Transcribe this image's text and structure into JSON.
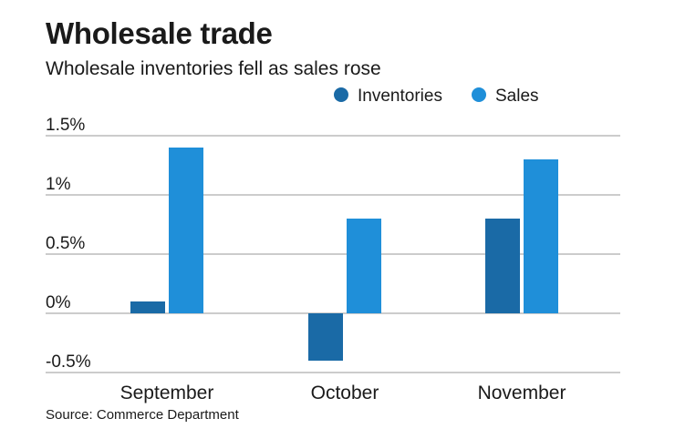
{
  "title": "Wholesale trade",
  "subtitle": "Wholesale inventories fell as sales rose",
  "source": "Source: Commerce Department",
  "colors": {
    "inventories": "#1a6aa6",
    "sales": "#1f8fd9",
    "grid": "#999999"
  },
  "chart_data": {
    "type": "bar",
    "title": "Wholesale trade",
    "subtitle": "Wholesale inventories fell as sales rose",
    "categories": [
      "September",
      "October",
      "November"
    ],
    "series": [
      {
        "name": "Inventories",
        "values": [
          0.1,
          -0.4,
          0.8
        ]
      },
      {
        "name": "Sales",
        "values": [
          1.4,
          0.8,
          1.3
        ]
      }
    ],
    "yticks": [
      1.5,
      1,
      0.5,
      0,
      -0.5
    ],
    "ytick_labels": [
      "1.5%",
      "1%",
      "0.5%",
      "0%",
      "-0.5%"
    ],
    "ylim": [
      -0.5,
      1.5
    ],
    "grid": true,
    "legend": "top-right",
    "xlabel": "",
    "ylabel": ""
  }
}
